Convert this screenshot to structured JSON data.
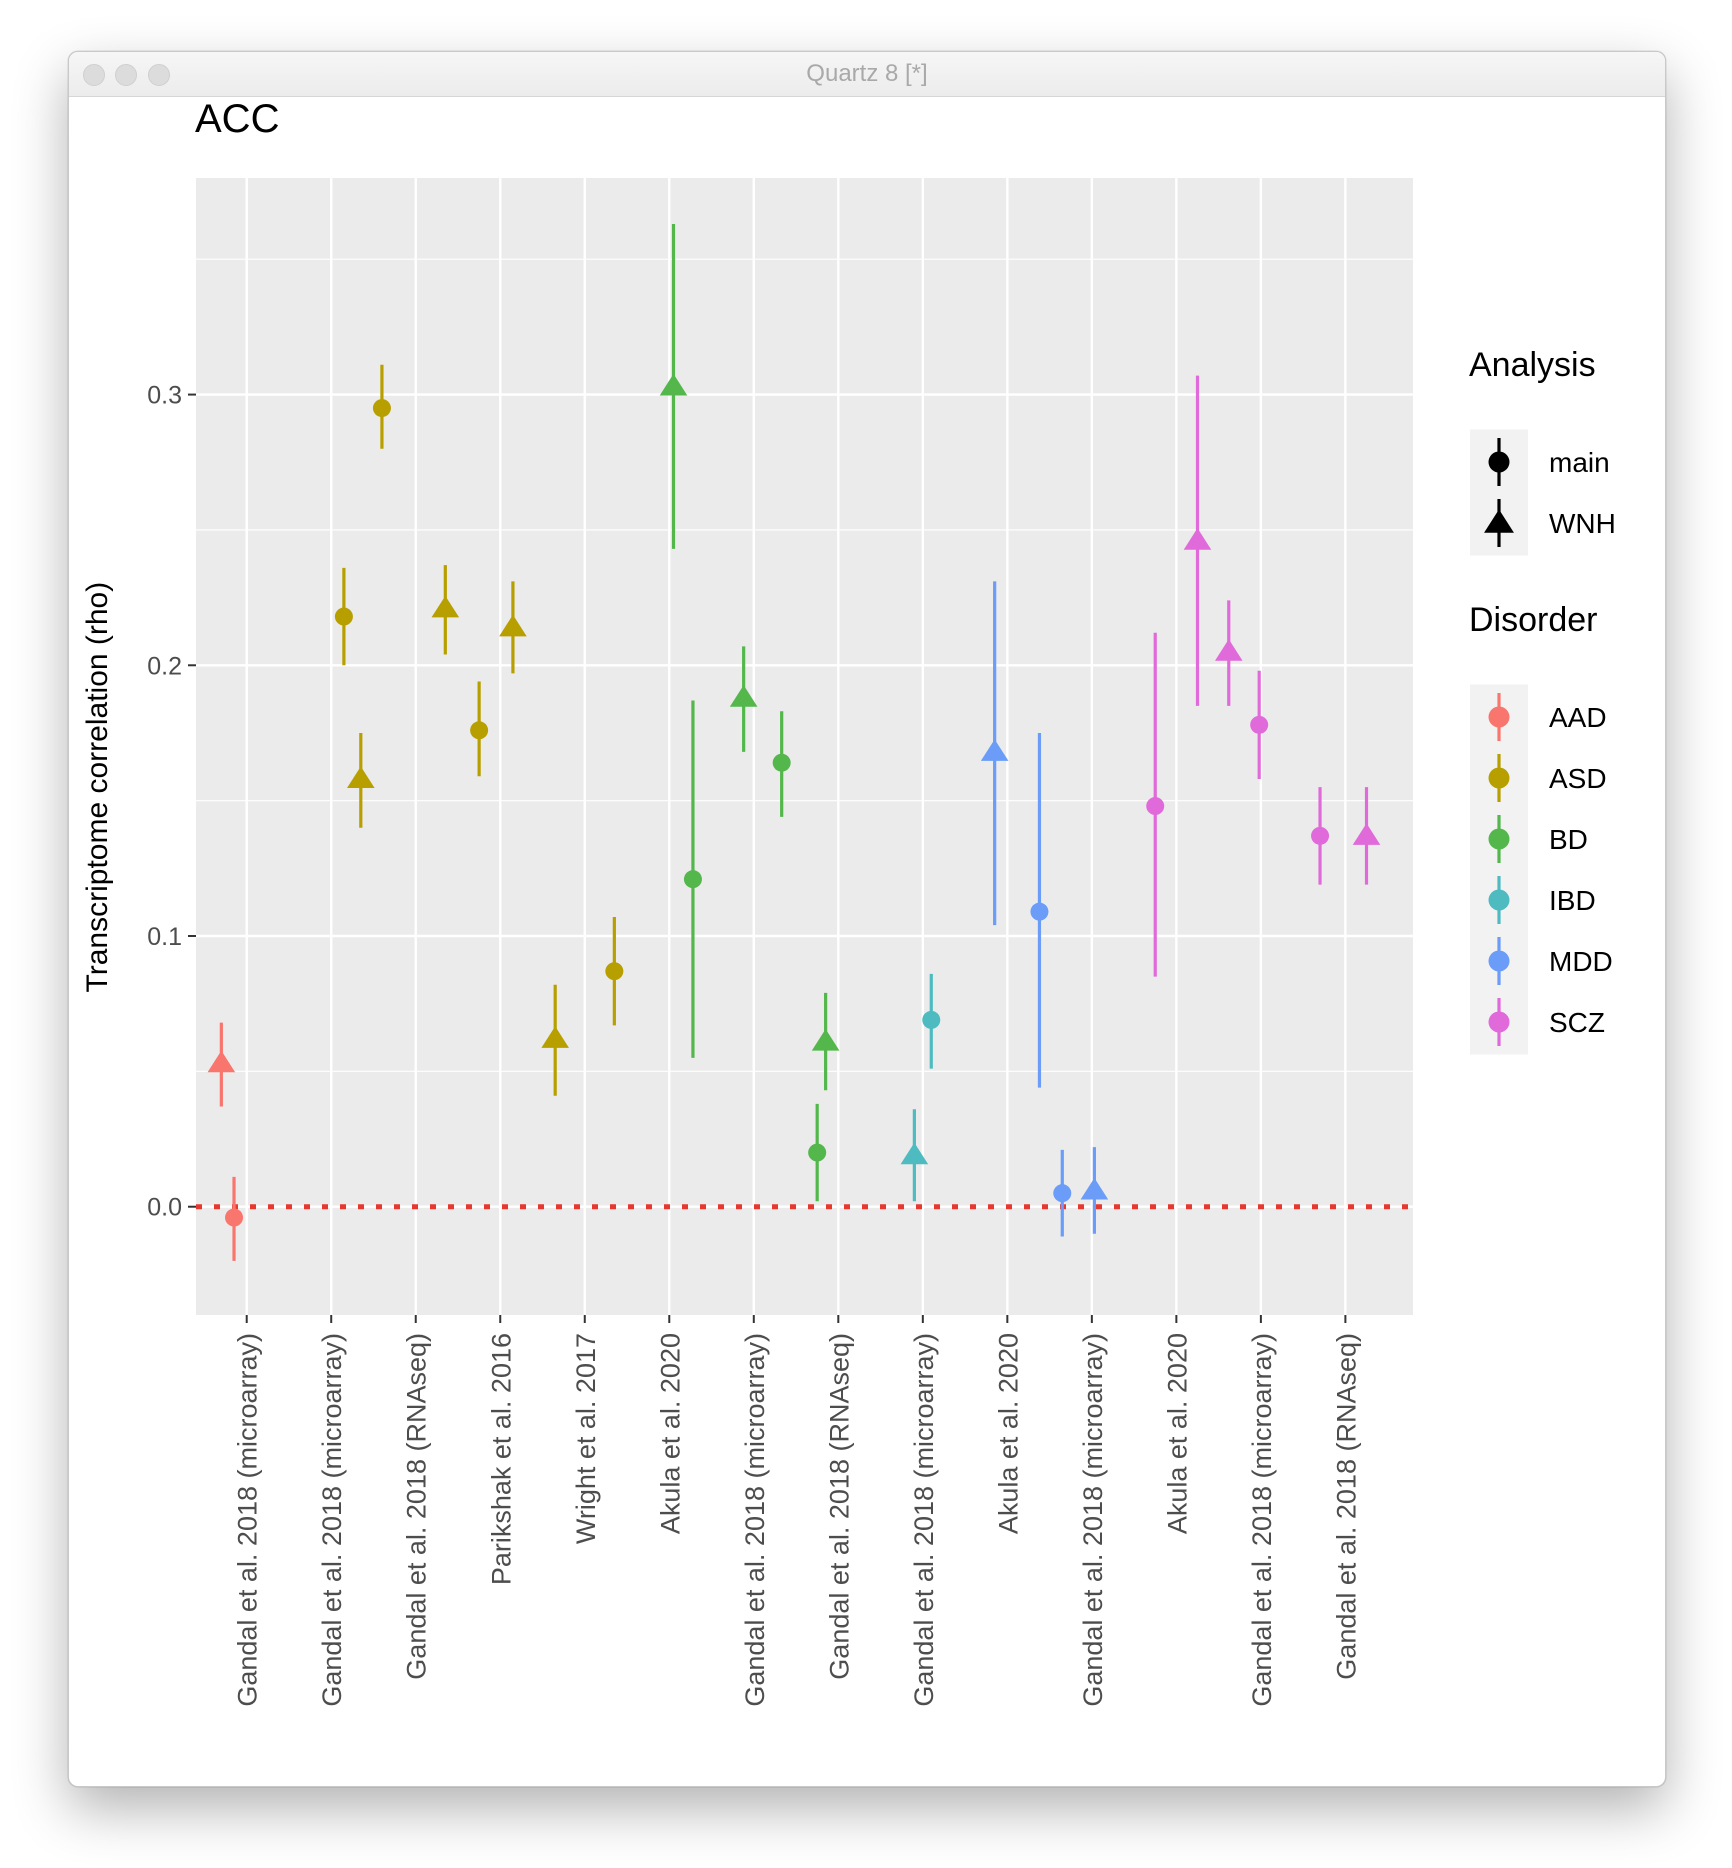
{
  "window": {
    "title": "Quartz 8 [*]",
    "buttons": [
      "close",
      "minimize",
      "zoom"
    ]
  },
  "colors": {
    "AAD": "#F8766D",
    "ASD": "#B79F00",
    "BD": "#53B74C",
    "IBD": "#4DBBC0",
    "MDD": "#6A9CF8",
    "SCZ": "#E06ADA",
    "zero_line": "#E8382E",
    "panel": "#EBEBEB",
    "grid": "#FFFFFF"
  },
  "chart_data": {
    "type": "scatter",
    "title": "ACC",
    "xlabel": "",
    "ylabel": "Transcriptome correlation (rho)",
    "ylim": [
      -0.04,
      0.38
    ],
    "yticks": [
      0.0,
      0.1,
      0.2,
      0.3
    ],
    "ytick_labels": [
      "0.0",
      "0.1",
      "0.2",
      "0.3"
    ],
    "grid": true,
    "reference_line": {
      "y": 0.0,
      "style": "dotted",
      "color": "red"
    },
    "categories": [
      "Gandal et al. 2018 (microarray)",
      "Gandal et al. 2018 (microarray)",
      "Gandal et al. 2018 (RNAseq)",
      "Parikshak et al. 2016",
      "Wright et al. 2017",
      "Akula et al. 2020",
      "Gandal et al. 2018 (microarray)",
      "Gandal et al. 2018 (RNAseq)",
      "Gandal et al. 2018 (microarray)",
      "Akula et al. 2020",
      "Gandal et al. 2018 (microarray)",
      "Akula et al. 2020",
      "Gandal et al. 2018 (microarray)",
      "Gandal et al. 2018 (RNAseq)"
    ],
    "points": [
      {
        "category": 1,
        "offset": -0.3,
        "disorder": "AAD",
        "analysis": "WNH",
        "y": 0.053,
        "lo": 0.037,
        "hi": 0.068
      },
      {
        "category": 1,
        "offset": -0.15,
        "disorder": "AAD",
        "analysis": "main",
        "y": -0.004,
        "lo": -0.02,
        "hi": 0.011
      },
      {
        "category": 2,
        "offset": 0.15,
        "disorder": "ASD",
        "analysis": "main",
        "y": 0.218,
        "lo": 0.2,
        "hi": 0.236
      },
      {
        "category": 2,
        "offset": 0.35,
        "disorder": "ASD",
        "analysis": "WNH",
        "y": 0.158,
        "lo": 0.14,
        "hi": 0.175
      },
      {
        "category": 2,
        "offset": 0.6,
        "disorder": "ASD",
        "analysis": "main",
        "y": 0.295,
        "lo": 0.28,
        "hi": 0.311
      },
      {
        "category": 3,
        "offset": 0.35,
        "disorder": "ASD",
        "analysis": "WNH",
        "y": 0.221,
        "lo": 0.204,
        "hi": 0.237
      },
      {
        "category": 4,
        "offset": -0.25,
        "disorder": "ASD",
        "analysis": "main",
        "y": 0.176,
        "lo": 0.159,
        "hi": 0.194
      },
      {
        "category": 4,
        "offset": 0.15,
        "disorder": "ASD",
        "analysis": "WNH",
        "y": 0.214,
        "lo": 0.197,
        "hi": 0.231
      },
      {
        "category": 5,
        "offset": -0.35,
        "disorder": "ASD",
        "analysis": "WNH",
        "y": 0.062,
        "lo": 0.041,
        "hi": 0.082
      },
      {
        "category": 5,
        "offset": 0.35,
        "disorder": "ASD",
        "analysis": "main",
        "y": 0.087,
        "lo": 0.067,
        "hi": 0.107
      },
      {
        "category": 6,
        "offset": 0.05,
        "disorder": "BD",
        "analysis": "WNH",
        "y": 0.303,
        "lo": 0.243,
        "hi": 0.363
      },
      {
        "category": 6,
        "offset": 0.28,
        "disorder": "BD",
        "analysis": "main",
        "y": 0.121,
        "lo": 0.055,
        "hi": 0.187
      },
      {
        "category": 7,
        "offset": -0.12,
        "disorder": "BD",
        "analysis": "WNH",
        "y": 0.188,
        "lo": 0.168,
        "hi": 0.207
      },
      {
        "category": 7,
        "offset": 0.33,
        "disorder": "BD",
        "analysis": "main",
        "y": 0.164,
        "lo": 0.144,
        "hi": 0.183
      },
      {
        "category": 8,
        "offset": -0.25,
        "disorder": "BD",
        "analysis": "main",
        "y": 0.02,
        "lo": 0.002,
        "hi": 0.038
      },
      {
        "category": 8,
        "offset": -0.15,
        "disorder": "BD",
        "analysis": "WNH",
        "y": 0.061,
        "lo": 0.043,
        "hi": 0.079
      },
      {
        "category": 9,
        "offset": -0.1,
        "disorder": "IBD",
        "analysis": "WNH",
        "y": 0.019,
        "lo": 0.002,
        "hi": 0.036
      },
      {
        "category": 9,
        "offset": 0.1,
        "disorder": "IBD",
        "analysis": "main",
        "y": 0.069,
        "lo": 0.051,
        "hi": 0.086
      },
      {
        "category": 10,
        "offset": -0.15,
        "disorder": "MDD",
        "analysis": "WNH",
        "y": 0.168,
        "lo": 0.104,
        "hi": 0.231
      },
      {
        "category": 10,
        "offset": 0.38,
        "disorder": "MDD",
        "analysis": "main",
        "y": 0.109,
        "lo": 0.044,
        "hi": 0.175
      },
      {
        "category": 11,
        "offset": -0.35,
        "disorder": "MDD",
        "analysis": "main",
        "y": 0.005,
        "lo": -0.011,
        "hi": 0.021
      },
      {
        "category": 11,
        "offset": 0.03,
        "disorder": "MDD",
        "analysis": "WNH",
        "y": 0.006,
        "lo": -0.01,
        "hi": 0.022
      },
      {
        "category": 12,
        "offset": -0.25,
        "disorder": "SCZ",
        "analysis": "main",
        "y": 0.148,
        "lo": 0.085,
        "hi": 0.212
      },
      {
        "category": 12,
        "offset": 0.25,
        "disorder": "SCZ",
        "analysis": "WNH",
        "y": 0.246,
        "lo": 0.185,
        "hi": 0.307
      },
      {
        "category": 13,
        "offset": -0.38,
        "disorder": "SCZ",
        "analysis": "WNH",
        "y": 0.205,
        "lo": 0.185,
        "hi": 0.224
      },
      {
        "category": 13,
        "offset": -0.02,
        "disorder": "SCZ",
        "analysis": "main",
        "y": 0.178,
        "lo": 0.158,
        "hi": 0.198
      },
      {
        "category": 14,
        "offset": -0.3,
        "disorder": "SCZ",
        "analysis": "main",
        "y": 0.137,
        "lo": 0.119,
        "hi": 0.155
      },
      {
        "category": 14,
        "offset": 0.25,
        "disorder": "SCZ",
        "analysis": "WNH",
        "y": 0.137,
        "lo": 0.119,
        "hi": 0.155
      }
    ],
    "legends": [
      {
        "title": "Analysis",
        "placement": "right",
        "entries": [
          {
            "label": "main",
            "shape": "circle"
          },
          {
            "label": "WNH",
            "shape": "triangle"
          }
        ]
      },
      {
        "title": "Disorder",
        "placement": "right",
        "entries": [
          {
            "label": "AAD",
            "color": "#F8766D"
          },
          {
            "label": "ASD",
            "color": "#B79F00"
          },
          {
            "label": "BD",
            "color": "#53B74C"
          },
          {
            "label": "IBD",
            "color": "#4DBBC0"
          },
          {
            "label": "MDD",
            "color": "#6A9CF8"
          },
          {
            "label": "SCZ",
            "color": "#E06ADA"
          }
        ]
      }
    ]
  }
}
